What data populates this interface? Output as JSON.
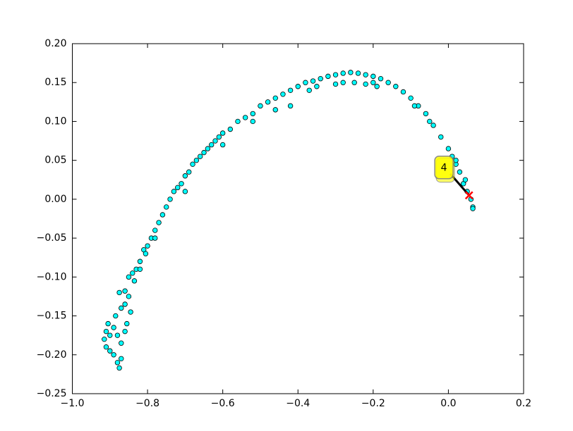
{
  "chart_data": {
    "type": "scatter",
    "x": [
      -0.875,
      -0.87,
      -0.88,
      -0.9,
      -0.91,
      -0.915,
      -0.91,
      -0.905,
      -0.89,
      -0.88,
      -0.885,
      -0.87,
      -0.86,
      -0.875,
      -0.86,
      -0.85,
      -0.89,
      -0.9,
      -0.87,
      -0.845,
      -0.855,
      -0.85,
      -0.84,
      -0.83,
      -0.835,
      -0.82,
      -0.81,
      -0.8,
      -0.805,
      -0.79,
      -0.78,
      -0.77,
      -0.76,
      -0.75,
      -0.74,
      -0.73,
      -0.72,
      -0.71,
      -0.7,
      -0.69,
      -0.68,
      -0.67,
      -0.66,
      -0.65,
      -0.64,
      -0.63,
      -0.62,
      -0.61,
      -0.6,
      -0.58,
      -0.56,
      -0.54,
      -0.52,
      -0.5,
      -0.48,
      -0.46,
      -0.44,
      -0.42,
      -0.4,
      -0.38,
      -0.36,
      -0.34,
      -0.32,
      -0.3,
      -0.28,
      -0.26,
      -0.24,
      -0.22,
      -0.2,
      -0.18,
      -0.16,
      -0.14,
      -0.12,
      -0.1,
      -0.08,
      -0.06,
      -0.04,
      -0.02,
      0.0,
      0.01,
      0.02,
      0.03,
      0.04,
      0.05,
      0.06,
      0.065,
      0.065,
      -0.37,
      -0.35,
      -0.3,
      -0.28,
      -0.25,
      -0.22,
      -0.2,
      -0.19,
      -0.42,
      -0.46,
      -0.52,
      -0.6,
      -0.7,
      -0.78,
      -0.82,
      -0.86,
      -0.09,
      -0.05,
      0.02,
      0.045
    ],
    "y": [
      -0.217,
      -0.205,
      -0.21,
      -0.195,
      -0.19,
      -0.18,
      -0.17,
      -0.16,
      -0.165,
      -0.175,
      -0.15,
      -0.14,
      -0.135,
      -0.12,
      -0.118,
      -0.125,
      -0.2,
      -0.175,
      -0.185,
      -0.145,
      -0.16,
      -0.1,
      -0.095,
      -0.09,
      -0.105,
      -0.08,
      -0.065,
      -0.06,
      -0.07,
      -0.05,
      -0.04,
      -0.03,
      -0.02,
      -0.01,
      0.0,
      0.01,
      0.015,
      0.02,
      0.03,
      0.035,
      0.045,
      0.05,
      0.055,
      0.06,
      0.065,
      0.07,
      0.075,
      0.08,
      0.085,
      0.09,
      0.1,
      0.105,
      0.11,
      0.12,
      0.125,
      0.13,
      0.135,
      0.14,
      0.145,
      0.15,
      0.152,
      0.155,
      0.158,
      0.16,
      0.162,
      0.163,
      0.162,
      0.16,
      0.158,
      0.155,
      0.15,
      0.145,
      0.138,
      0.13,
      0.12,
      0.11,
      0.095,
      0.08,
      0.065,
      0.055,
      0.045,
      0.035,
      0.02,
      0.01,
      0.0,
      -0.01,
      -0.012,
      0.14,
      0.145,
      0.148,
      0.15,
      0.15,
      0.148,
      0.15,
      0.145,
      0.12,
      0.115,
      0.1,
      0.07,
      0.01,
      -0.05,
      -0.09,
      -0.17,
      0.12,
      0.1,
      0.05,
      0.025
    ],
    "color": "#00ffff",
    "annotation": {
      "text": "4",
      "x": 0.055,
      "y": 0.005,
      "text_x": -0.01,
      "text_y": 0.04,
      "marker_color": "#ff0000",
      "box_color": "#ffff00"
    },
    "xlim": [
      -1.0,
      0.2
    ],
    "ylim": [
      -0.25,
      0.2
    ],
    "xticks": [
      {
        "value": -1.0,
        "label": "−1.0"
      },
      {
        "value": -0.8,
        "label": "−0.8"
      },
      {
        "value": -0.6,
        "label": "−0.6"
      },
      {
        "value": -0.4,
        "label": "−0.4"
      },
      {
        "value": -0.2,
        "label": "−0.2"
      },
      {
        "value": 0.0,
        "label": "0.0"
      },
      {
        "value": 0.2,
        "label": "0.2"
      }
    ],
    "yticks": [
      {
        "value": -0.25,
        "label": "−0.25"
      },
      {
        "value": -0.2,
        "label": "−0.20"
      },
      {
        "value": -0.15,
        "label": "−0.15"
      },
      {
        "value": -0.1,
        "label": "−0.10"
      },
      {
        "value": -0.05,
        "label": "−0.05"
      },
      {
        "value": 0.0,
        "label": "0.00"
      },
      {
        "value": 0.05,
        "label": "0.05"
      },
      {
        "value": 0.1,
        "label": "0.10"
      },
      {
        "value": 0.15,
        "label": "0.15"
      },
      {
        "value": 0.2,
        "label": "0.20"
      }
    ]
  }
}
